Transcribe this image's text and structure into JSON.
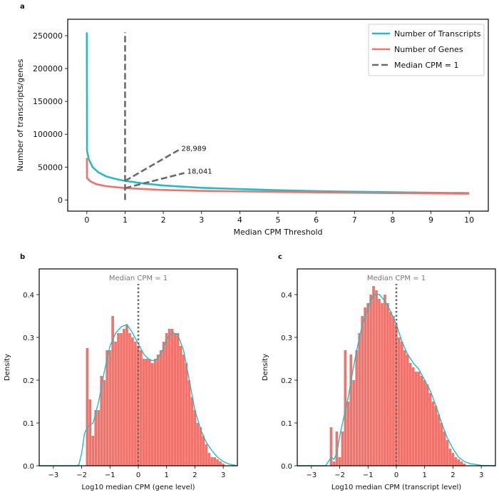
{
  "colors": {
    "transcripts": "#22bdc4",
    "genes": "#f2736b",
    "median": "#6b6b6b",
    "hist": "#f2736b",
    "kde": "#22bdc4"
  },
  "chart_data": [
    {
      "panel": "a",
      "type": "line",
      "xlabel": "Median CPM Threshold",
      "ylabel": "Number of transcripts/genes",
      "xlim": [
        -0.5,
        10.5
      ],
      "ylim": [
        -17000,
        275000
      ],
      "xticks": [
        0,
        1,
        2,
        3,
        4,
        5,
        6,
        7,
        8,
        9,
        10
      ],
      "yticks": [
        0,
        50000,
        100000,
        150000,
        200000,
        250000
      ],
      "legend": {
        "placement": "top-right",
        "entries": [
          "Number of Transcripts",
          "Number of Genes",
          "Median CPM = 1"
        ]
      },
      "series": [
        {
          "name": "Number of Transcripts",
          "color_key": "transcripts",
          "points": [
            [
              0,
              255000
            ],
            [
              0.005,
              75000
            ],
            [
              0.05,
              62000
            ],
            [
              0.15,
              50000
            ],
            [
              0.3,
              42000
            ],
            [
              0.5,
              36000
            ],
            [
              0.75,
              32000
            ],
            [
              1,
              28989
            ],
            [
              1.5,
              25000
            ],
            [
              2,
              22000
            ],
            [
              3,
              18500
            ],
            [
              4,
              16500
            ],
            [
              5,
              14800
            ],
            [
              6,
              13500
            ],
            [
              7,
              12500
            ],
            [
              8,
              11700
            ],
            [
              9,
              11000
            ],
            [
              10,
              10500
            ]
          ]
        },
        {
          "name": "Number of Genes",
          "color_key": "genes",
          "points": [
            [
              0,
              64000
            ],
            [
              0.005,
              33000
            ],
            [
              0.1,
              28000
            ],
            [
              0.25,
              24000
            ],
            [
              0.5,
              21000
            ],
            [
              1,
              18041
            ],
            [
              1.5,
              16500
            ],
            [
              2,
              15200
            ],
            [
              3,
              13800
            ],
            [
              5,
              12200
            ],
            [
              7,
              11000
            ],
            [
              10,
              9500
            ]
          ]
        }
      ],
      "vline": {
        "x": 1,
        "y_range": [
          0,
          255000
        ],
        "label": "Median CPM = 1"
      },
      "annotations": [
        {
          "text": "28,989",
          "from": [
            1,
            28989
          ],
          "to": [
            2.4,
            76000
          ]
        },
        {
          "text": "18,041",
          "from": [
            1,
            18041
          ],
          "to": [
            2.55,
            41000
          ]
        }
      ]
    },
    {
      "panel": "b",
      "type": "bar",
      "xlabel": "Log10 median CPM (gene level)",
      "ylabel": "Density",
      "xlim": [
        -3.5,
        3.5
      ],
      "ylim": [
        0,
        0.46
      ],
      "xticks": [
        -3,
        -2,
        -1,
        0,
        1,
        2,
        3
      ],
      "xtick_labels": [
        "−3",
        "−2",
        "−1",
        "0",
        "1",
        "2",
        "3"
      ],
      "yticks": [
        0.0,
        0.1,
        0.2,
        0.3,
        0.4
      ],
      "ytick_labels": [
        "0.0",
        "0.1",
        "0.2",
        "0.3",
        "0.4"
      ],
      "median_label": "Median CPM = 1",
      "bin_start": -1.85,
      "bin_width": 0.1,
      "values": [
        0.275,
        0.155,
        0.07,
        0.13,
        0.13,
        0.21,
        0.2,
        0.27,
        0.27,
        0.35,
        0.29,
        0.31,
        0.31,
        0.32,
        0.33,
        0.31,
        0.3,
        0.29,
        0.28,
        0.27,
        0.25,
        0.25,
        0.25,
        0.24,
        0.25,
        0.26,
        0.27,
        0.29,
        0.31,
        0.32,
        0.32,
        0.31,
        0.31,
        0.28,
        0.26,
        0.24,
        0.2,
        0.16,
        0.13,
        0.1,
        0.09,
        0.07,
        0.05,
        0.03,
        0.02,
        0.02,
        0.015,
        0.01,
        0.005
      ],
      "kde": [
        [
          -3.5,
          0
        ],
        [
          -2.2,
          0
        ],
        [
          -2.1,
          0.002
        ],
        [
          -2.0,
          0.03
        ],
        [
          -1.9,
          0.075
        ],
        [
          -1.8,
          0.09
        ],
        [
          -1.6,
          0.1
        ],
        [
          -1.4,
          0.15
        ],
        [
          -1.2,
          0.22
        ],
        [
          -1.0,
          0.28
        ],
        [
          -0.8,
          0.31
        ],
        [
          -0.6,
          0.325
        ],
        [
          -0.4,
          0.33
        ],
        [
          -0.2,
          0.31
        ],
        [
          0,
          0.285
        ],
        [
          0.2,
          0.26
        ],
        [
          0.4,
          0.247
        ],
        [
          0.6,
          0.245
        ],
        [
          0.8,
          0.26
        ],
        [
          1.0,
          0.295
        ],
        [
          1.2,
          0.312
        ],
        [
          1.4,
          0.305
        ],
        [
          1.6,
          0.27
        ],
        [
          1.8,
          0.2
        ],
        [
          2.0,
          0.13
        ],
        [
          2.2,
          0.085
        ],
        [
          2.4,
          0.055
        ],
        [
          2.6,
          0.035
        ],
        [
          2.8,
          0.02
        ],
        [
          3.0,
          0.01
        ],
        [
          3.2,
          0.004
        ],
        [
          3.5,
          0
        ]
      ]
    },
    {
      "panel": "c",
      "type": "bar",
      "xlabel": "Log10 median CPM (transcript level)",
      "ylabel": "Density",
      "xlim": [
        -3.5,
        3.5
      ],
      "ylim": [
        0,
        0.46
      ],
      "xticks": [
        -3,
        -2,
        -1,
        0,
        1,
        2,
        3
      ],
      "xtick_labels": [
        "−3",
        "−2",
        "−1",
        "0",
        "1",
        "2",
        "3"
      ],
      "yticks": [
        0.0,
        0.1,
        0.2,
        0.3,
        0.4
      ],
      "ytick_labels": [
        "0.0",
        "0.1",
        "0.2",
        "0.3",
        "0.4"
      ],
      "median_label": "Median CPM = 1",
      "bin_start": -2.35,
      "bin_width": 0.1,
      "values": [
        0.09,
        0.01,
        0.08,
        0.02,
        0.08,
        0.27,
        0.15,
        0.26,
        0.2,
        0.27,
        0.31,
        0.35,
        0.37,
        0.38,
        0.4,
        0.42,
        0.41,
        0.39,
        0.38,
        0.4,
        0.38,
        0.36,
        0.35,
        0.33,
        0.3,
        0.29,
        0.27,
        0.26,
        0.24,
        0.23,
        0.22,
        0.22,
        0.21,
        0.2,
        0.19,
        0.17,
        0.15,
        0.14,
        0.12,
        0.1,
        0.08,
        0.06,
        0.04,
        0.03,
        0.02,
        0.015,
        0.01,
        0.005
      ],
      "kde": [
        [
          -3.5,
          0
        ],
        [
          -2.5,
          0
        ],
        [
          -2.4,
          0.01
        ],
        [
          -2.3,
          0.02
        ],
        [
          -2.2,
          0.015
        ],
        [
          -2.1,
          0.03
        ],
        [
          -2.0,
          0.07
        ],
        [
          -1.9,
          0.1
        ],
        [
          -1.8,
          0.13
        ],
        [
          -1.7,
          0.16
        ],
        [
          -1.6,
          0.2
        ],
        [
          -1.4,
          0.27
        ],
        [
          -1.2,
          0.33
        ],
        [
          -1.0,
          0.37
        ],
        [
          -0.8,
          0.4
        ],
        [
          -0.6,
          0.4
        ],
        [
          -0.4,
          0.385
        ],
        [
          -0.2,
          0.36
        ],
        [
          0,
          0.33
        ],
        [
          0.2,
          0.29
        ],
        [
          0.4,
          0.26
        ],
        [
          0.6,
          0.24
        ],
        [
          0.8,
          0.225
        ],
        [
          1.0,
          0.2
        ],
        [
          1.2,
          0.175
        ],
        [
          1.4,
          0.14
        ],
        [
          1.6,
          0.1
        ],
        [
          1.8,
          0.065
        ],
        [
          2.0,
          0.04
        ],
        [
          2.2,
          0.02
        ],
        [
          2.4,
          0.01
        ],
        [
          2.6,
          0.005
        ],
        [
          3.0,
          0.001
        ],
        [
          3.5,
          0
        ]
      ]
    }
  ]
}
